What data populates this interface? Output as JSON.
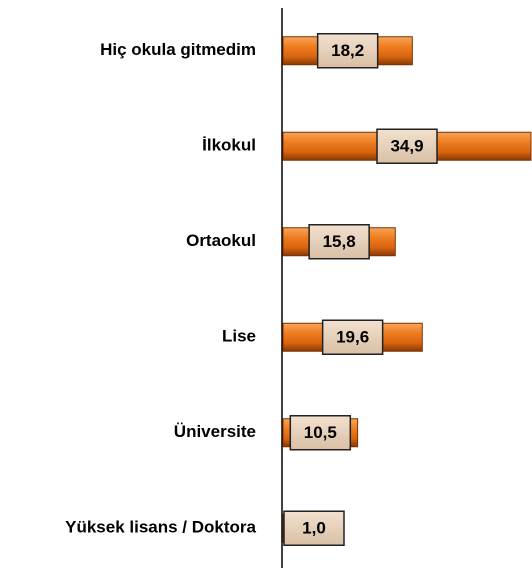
{
  "chart_data": {
    "type": "bar",
    "orientation": "horizontal",
    "categories": [
      "Hiç okula gitmedim",
      "İlkokul",
      "Ortaokul",
      "Lise",
      "Üniversite",
      "Yüksek lisans / Doktora"
    ],
    "values": [
      18.2,
      34.9,
      15.8,
      19.6,
      10.5,
      1.0
    ],
    "value_labels": [
      "18,2",
      "34,9",
      "15,8",
      "19,6",
      "10,5",
      "1,0"
    ],
    "color": "#e8761a"
  }
}
